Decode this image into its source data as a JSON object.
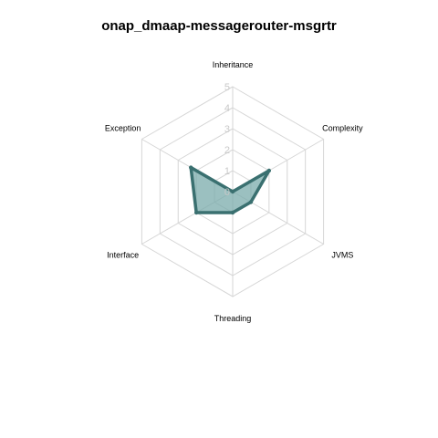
{
  "chart_data": {
    "type": "radar",
    "title": "onap_dmaap-messagerouter-msgrtr",
    "axes": [
      "Inheritance",
      "Complexity",
      "JVMS",
      "Threading",
      "Interface",
      "Exception"
    ],
    "ticks": [
      "0",
      "1",
      "2",
      "3",
      "4",
      "5"
    ],
    "range": [
      0,
      5
    ],
    "series": [
      {
        "values": [
          0,
          2,
          1,
          1,
          2,
          2.3
        ]
      }
    ],
    "colors": {
      "series_line": "#3a7070",
      "series_fill": "#7aabab",
      "grid": "#d6d6d6",
      "tick_text": "#c8c8c8"
    },
    "grid": true
  }
}
